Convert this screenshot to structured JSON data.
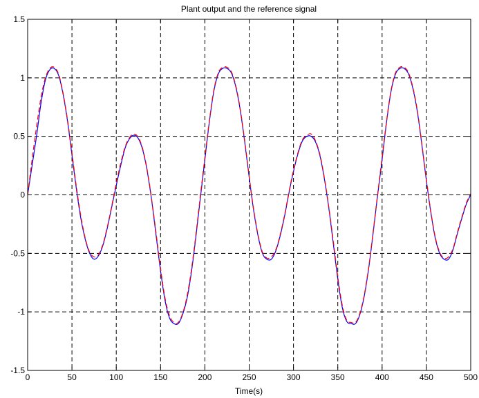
{
  "chart_data": {
    "type": "line",
    "title": "Plant output and the reference signal",
    "xlabel": "Time(s)",
    "ylabel": "",
    "xlim": [
      0,
      500
    ],
    "ylim": [
      -1.5,
      1.5
    ],
    "x_ticks": [
      0,
      50,
      100,
      150,
      200,
      250,
      300,
      350,
      400,
      450,
      500
    ],
    "y_ticks": [
      -1.5,
      -1,
      -0.5,
      0,
      0.5,
      1,
      1.5
    ],
    "x_tick_labels": [
      "0",
      "50",
      "100",
      "150",
      "200",
      "250",
      "300",
      "350",
      "400",
      "450",
      "500"
    ],
    "y_tick_labels": [
      "-1.5",
      "-1",
      "-0.5",
      "0",
      "0.5",
      "1",
      "1.5"
    ],
    "grid": true,
    "series": [
      {
        "color": "#0000ff",
        "style": "solid",
        "x": [
          0,
          5,
          10,
          15,
          20,
          25,
          30,
          35,
          40,
          45,
          50,
          55,
          60,
          65,
          70,
          75,
          80,
          85,
          90,
          95,
          100,
          105,
          110,
          115,
          120,
          125,
          130,
          135,
          140,
          145,
          150,
          155,
          160,
          165,
          170,
          175,
          180,
          185,
          190,
          195,
          200,
          205,
          210,
          215,
          220,
          225,
          230,
          235,
          240,
          245,
          250,
          255,
          260,
          265,
          270,
          275,
          280,
          285,
          290,
          295,
          300,
          305,
          310,
          315,
          320,
          325,
          330,
          335,
          340,
          345,
          350,
          355,
          360,
          365,
          370,
          375,
          380,
          385,
          390,
          395,
          400,
          405,
          410,
          415,
          420,
          425,
          430,
          435,
          440,
          445,
          450,
          455,
          460,
          465,
          470,
          475,
          480,
          485,
          490,
          495,
          500
        ],
        "values": [
          0.0,
          0.25,
          0.5,
          0.78,
          0.98,
          1.07,
          1.08,
          1.02,
          0.86,
          0.63,
          0.34,
          0.05,
          -0.2,
          -0.38,
          -0.5,
          -0.55,
          -0.52,
          -0.43,
          -0.28,
          -0.1,
          0.08,
          0.25,
          0.4,
          0.48,
          0.51,
          0.48,
          0.38,
          0.2,
          -0.05,
          -0.35,
          -0.65,
          -0.9,
          -1.05,
          -1.1,
          -1.1,
          -1.02,
          -0.88,
          -0.65,
          -0.35,
          -0.02,
          0.3,
          0.62,
          0.88,
          1.03,
          1.08,
          1.08,
          1.04,
          0.92,
          0.72,
          0.45,
          0.15,
          -0.13,
          -0.35,
          -0.5,
          -0.55,
          -0.55,
          -0.48,
          -0.35,
          -0.18,
          0.02,
          0.2,
          0.35,
          0.46,
          0.5,
          0.5,
          0.45,
          0.33,
          0.13,
          -0.12,
          -0.42,
          -0.72,
          -0.96,
          -1.08,
          -1.1,
          -1.1,
          -1.02,
          -0.86,
          -0.62,
          -0.32,
          0.0,
          0.3,
          0.62,
          0.88,
          1.03,
          1.08,
          1.08,
          1.03,
          0.9,
          0.7,
          0.42,
          0.12,
          -0.15,
          -0.37,
          -0.5,
          -0.55,
          -0.55,
          -0.47,
          -0.33,
          -0.2,
          -0.08,
          0.0
        ]
      },
      {
        "color": "#ff0000",
        "style": "dashed",
        "x": [
          0,
          5,
          10,
          15,
          20,
          25,
          30,
          35,
          40,
          45,
          50,
          55,
          60,
          65,
          70,
          75,
          80,
          85,
          90,
          95,
          100,
          105,
          110,
          115,
          120,
          125,
          130,
          135,
          140,
          145,
          150,
          155,
          160,
          165,
          170,
          175,
          180,
          185,
          190,
          195,
          200,
          205,
          210,
          215,
          220,
          225,
          230,
          235,
          240,
          245,
          250,
          255,
          260,
          265,
          270,
          275,
          280,
          285,
          290,
          295,
          300,
          305,
          310,
          315,
          320,
          325,
          330,
          335,
          340,
          345,
          350,
          355,
          360,
          365,
          370,
          375,
          380,
          385,
          390,
          395,
          400,
          405,
          410,
          415,
          420,
          425,
          430,
          435,
          440,
          445,
          450,
          455,
          460,
          465,
          470,
          475,
          480,
          485,
          490,
          495,
          500
        ],
        "values": [
          0.0,
          0.3,
          0.58,
          0.83,
          1.0,
          1.08,
          1.09,
          1.03,
          0.87,
          0.64,
          0.36,
          0.07,
          -0.18,
          -0.37,
          -0.49,
          -0.53,
          -0.51,
          -0.42,
          -0.27,
          -0.09,
          0.1,
          0.27,
          0.41,
          0.49,
          0.52,
          0.49,
          0.39,
          0.21,
          -0.04,
          -0.33,
          -0.63,
          -0.88,
          -1.03,
          -1.09,
          -1.09,
          -1.01,
          -0.86,
          -0.63,
          -0.33,
          0.0,
          0.32,
          0.63,
          0.89,
          1.04,
          1.09,
          1.09,
          1.05,
          0.93,
          0.73,
          0.46,
          0.16,
          -0.12,
          -0.34,
          -0.49,
          -0.54,
          -0.53,
          -0.47,
          -0.34,
          -0.17,
          0.03,
          0.21,
          0.36,
          0.47,
          0.51,
          0.52,
          0.46,
          0.34,
          0.14,
          -0.11,
          -0.4,
          -0.7,
          -0.94,
          -1.07,
          -1.09,
          -1.09,
          -1.01,
          -0.85,
          -0.61,
          -0.31,
          0.01,
          0.32,
          0.63,
          0.89,
          1.04,
          1.09,
          1.09,
          1.04,
          0.91,
          0.71,
          0.43,
          0.13,
          -0.14,
          -0.36,
          -0.49,
          -0.54,
          -0.53,
          -0.46,
          -0.32,
          -0.19,
          -0.07,
          0.01
        ]
      }
    ]
  }
}
